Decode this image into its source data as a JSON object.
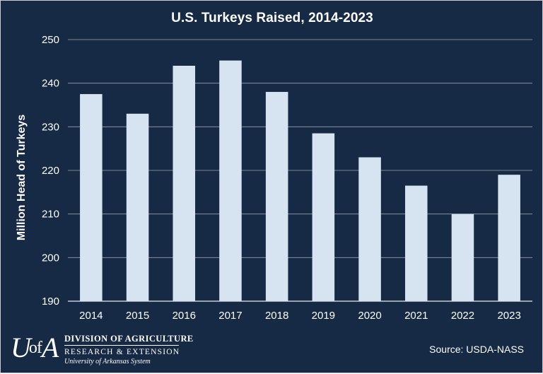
{
  "chart_data": {
    "type": "bar",
    "title": "U.S. Turkeys Raised, 2014-2023",
    "xlabel": "",
    "ylabel": "Million Head of Turkeys",
    "categories": [
      "2014",
      "2015",
      "2016",
      "2017",
      "2018",
      "2019",
      "2020",
      "2021",
      "2022",
      "2023"
    ],
    "values": [
      237.5,
      233,
      244,
      245.2,
      238,
      228.5,
      223,
      216.5,
      210,
      219
    ],
    "ylim": [
      190,
      250
    ],
    "yticks": [
      "190",
      "200",
      "210",
      "220",
      "230",
      "240",
      "250"
    ],
    "grid": true,
    "legend": "none",
    "colors": {
      "background": "#162a45",
      "bar": "#d6e4f1",
      "grid": "#ffffff",
      "text": "#ffffff"
    }
  },
  "footer": {
    "logo_mark": "U",
    "logo_mark_small": "of",
    "logo_mark_end": "A",
    "logo_line1": "DIVISION OF AGRICULTURE",
    "logo_line2": "RESEARCH & EXTENSION",
    "logo_line3": "University of Arkansas System",
    "source": "Source: USDA-NASS"
  }
}
